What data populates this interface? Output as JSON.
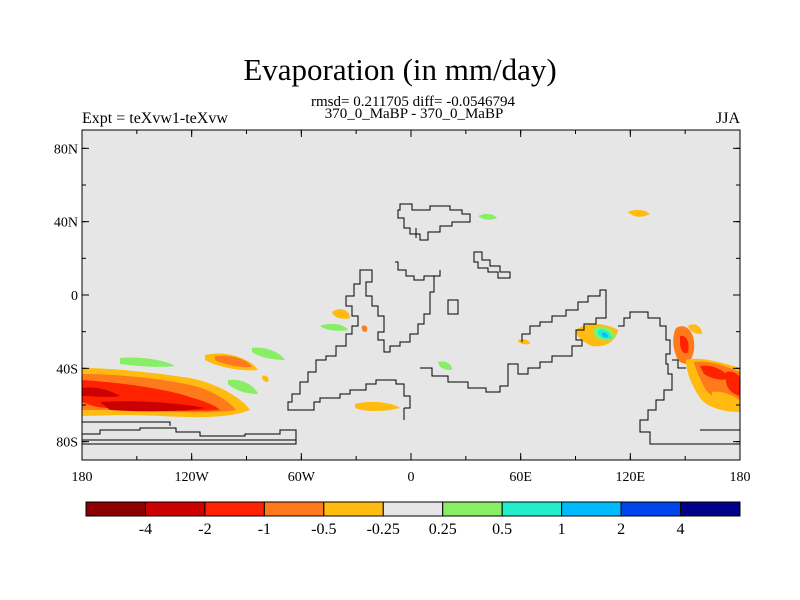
{
  "title": "Evaporation (in mm/day)",
  "stats": "rmsd= 0.211705 diff= -0.0546794",
  "subtitle": "370_0_MaBP - 370_0_MaBP",
  "experiment_label": "Expt = teXvw1-teXvw",
  "season": "JJA",
  "map": {
    "background_color": "#e6e6e6",
    "coastline_color": "#000000",
    "lon_ticks": [
      "180",
      "120W",
      "60W",
      "0",
      "60E",
      "120E",
      "180"
    ],
    "lat_ticks": [
      "80N",
      "40N",
      "0",
      "40S",
      "80S"
    ]
  },
  "colorbar": {
    "colors": [
      "#8b0000",
      "#cc0000",
      "#ff2200",
      "#ff7a1a",
      "#ffbb10",
      "#e6e6e6",
      "#88ee66",
      "#22eecc",
      "#00bbff",
      "#0044ee",
      "#000088"
    ],
    "labels": [
      "-4",
      "-2",
      "-1",
      "-0.5",
      "-0.25",
      "0.25",
      "0.5",
      "1",
      "2",
      "4"
    ]
  }
}
